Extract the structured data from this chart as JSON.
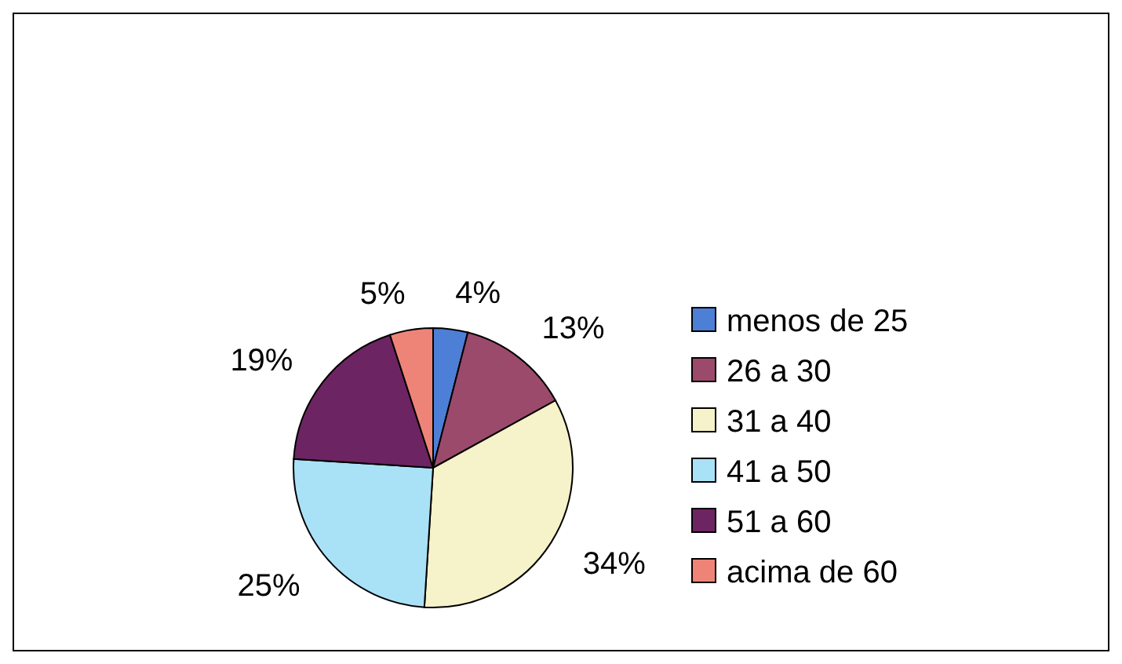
{
  "chart_data": {
    "type": "pie",
    "categories": [
      "menos de 25",
      "26 a 30",
      "31 a 40",
      "41 a 50",
      "51 a 60",
      "acima de 60"
    ],
    "values": [
      4,
      13,
      34,
      25,
      19,
      5
    ],
    "colors": [
      "#4d7fd6",
      "#9b4a6c",
      "#f6f2c9",
      "#a9e1f7",
      "#6d2462",
      "#ee8478"
    ],
    "value_labels": [
      "4%",
      "13%",
      "34%",
      "25%",
      "19%",
      "5%"
    ],
    "legend": "right"
  }
}
